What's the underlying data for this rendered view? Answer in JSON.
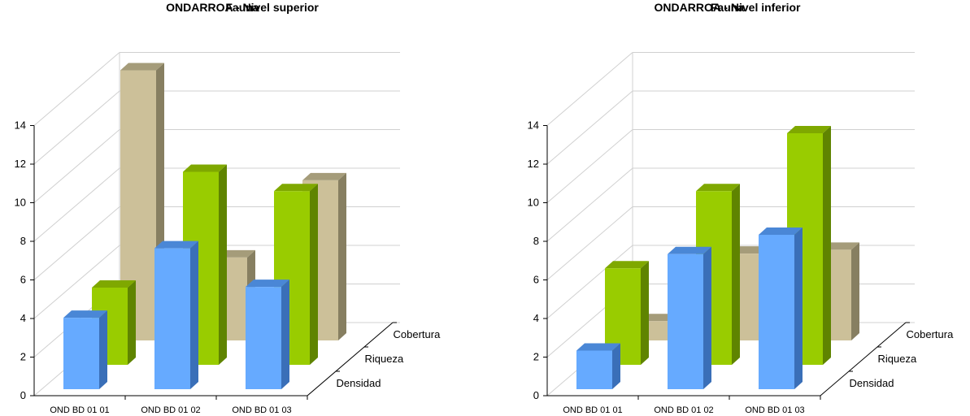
{
  "colors": {
    "Densidad": {
      "front": "#66aaff",
      "top": "#4a87d6",
      "side": "#3a6fb8"
    },
    "Riqueza": {
      "front": "#99cc00",
      "top": "#7fa800",
      "side": "#5f8400"
    },
    "Cobertura": {
      "front": "#ccc099",
      "top": "#a59c7a",
      "side": "#877f61"
    },
    "grid": "#d0d0d0",
    "axis": "#000000"
  },
  "chart_data": [
    {
      "type": "bar",
      "title": "ONDARROA - Nivel superior",
      "subtitle": "Fauna",
      "categories": [
        "OND  BD  01  01",
        "OND  BD  01  02",
        "OND  BD  01  03"
      ],
      "series": [
        {
          "name": "Densidad",
          "values": [
            3.7,
            7.3,
            5.3
          ]
        },
        {
          "name": "Riqueza",
          "values": [
            4.0,
            10.0,
            9.0
          ]
        },
        {
          "name": "Cobertura",
          "values": [
            14.0,
            4.3,
            8.3
          ]
        }
      ],
      "ylim": [
        0,
        14
      ],
      "yticks": [
        0,
        2,
        4,
        6,
        8,
        10,
        12,
        14
      ],
      "grid": true
    },
    {
      "type": "bar",
      "title": "ONDARROA - Nivel inferior",
      "subtitle": "Fauna",
      "categories": [
        "OND  BD  01  01",
        "OND  BD  01  02",
        "OND  BD  01  03"
      ],
      "series": [
        {
          "name": "Densidad",
          "values": [
            2.0,
            7.0,
            8.0
          ]
        },
        {
          "name": "Riqueza",
          "values": [
            5.0,
            9.0,
            12.0
          ]
        },
        {
          "name": "Cobertura",
          "values": [
            1.0,
            4.5,
            4.7
          ]
        }
      ],
      "ylim": [
        0,
        14
      ],
      "yticks": [
        0,
        2,
        4,
        6,
        8,
        10,
        12,
        14
      ],
      "grid": true
    }
  ]
}
